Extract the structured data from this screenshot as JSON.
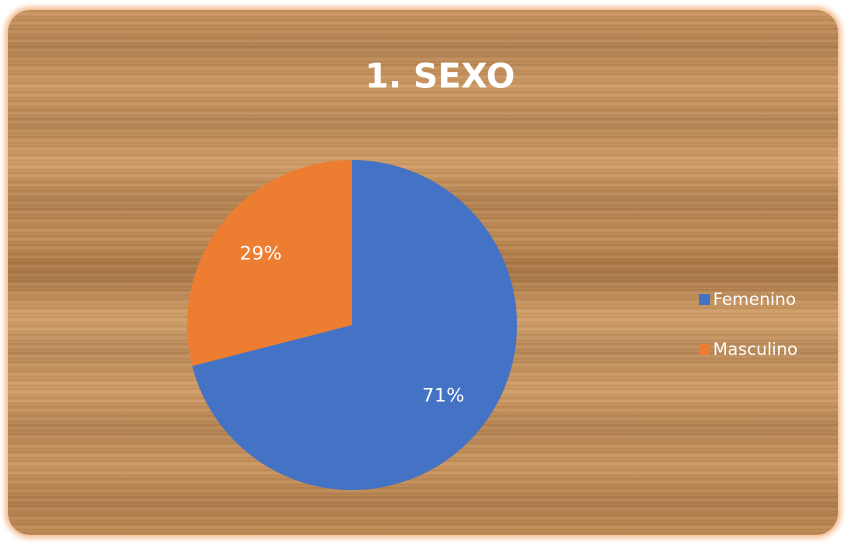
{
  "chart_data": {
    "type": "pie",
    "title": "1. SEXO",
    "categories": [
      "Femenino",
      "Masculino"
    ],
    "values": [
      71,
      29
    ],
    "value_labels": [
      "71%",
      "29%"
    ],
    "colors": [
      "#4472c4",
      "#ed7d31"
    ],
    "legend": "right"
  }
}
